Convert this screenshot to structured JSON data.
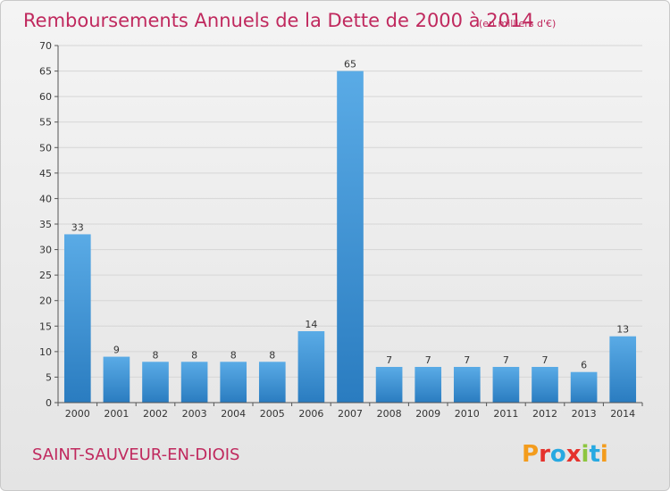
{
  "chart_data": {
    "type": "bar",
    "title": "Remboursements Annuels de la Dette de 2000 à 2014",
    "subtitle": "(en milliers d'€)",
    "categories": [
      "2000",
      "2001",
      "2002",
      "2003",
      "2004",
      "2005",
      "2006",
      "2007",
      "2008",
      "2009",
      "2010",
      "2011",
      "2012",
      "2013",
      "2014"
    ],
    "values": [
      33,
      9,
      8,
      8,
      8,
      8,
      14,
      65,
      7,
      7,
      7,
      7,
      7,
      6,
      13
    ],
    "xlabel": "",
    "ylabel": "",
    "ylim": [
      0,
      70
    ],
    "yticks": [
      0,
      5,
      10,
      15,
      20,
      25,
      30,
      35,
      40,
      45,
      50,
      55,
      60,
      65,
      70
    ],
    "grid": true
  },
  "footer": {
    "commune": "SAINT-SAUVEUR-EN-DIOIS"
  },
  "logo": {
    "letters": [
      "P",
      "r",
      "o",
      "x",
      "i",
      "t",
      "i"
    ],
    "colors": [
      "#f39c1d",
      "#e5322d",
      "#27a9e1",
      "#e5322d",
      "#8dc63f",
      "#27a9e1",
      "#f39c1d"
    ]
  },
  "colors": {
    "bar_light": "#5aabe6",
    "bar_dark": "#2a7cc0",
    "grid": "#d6d6d6",
    "axis": "#555555",
    "accent": "#c0295e"
  }
}
